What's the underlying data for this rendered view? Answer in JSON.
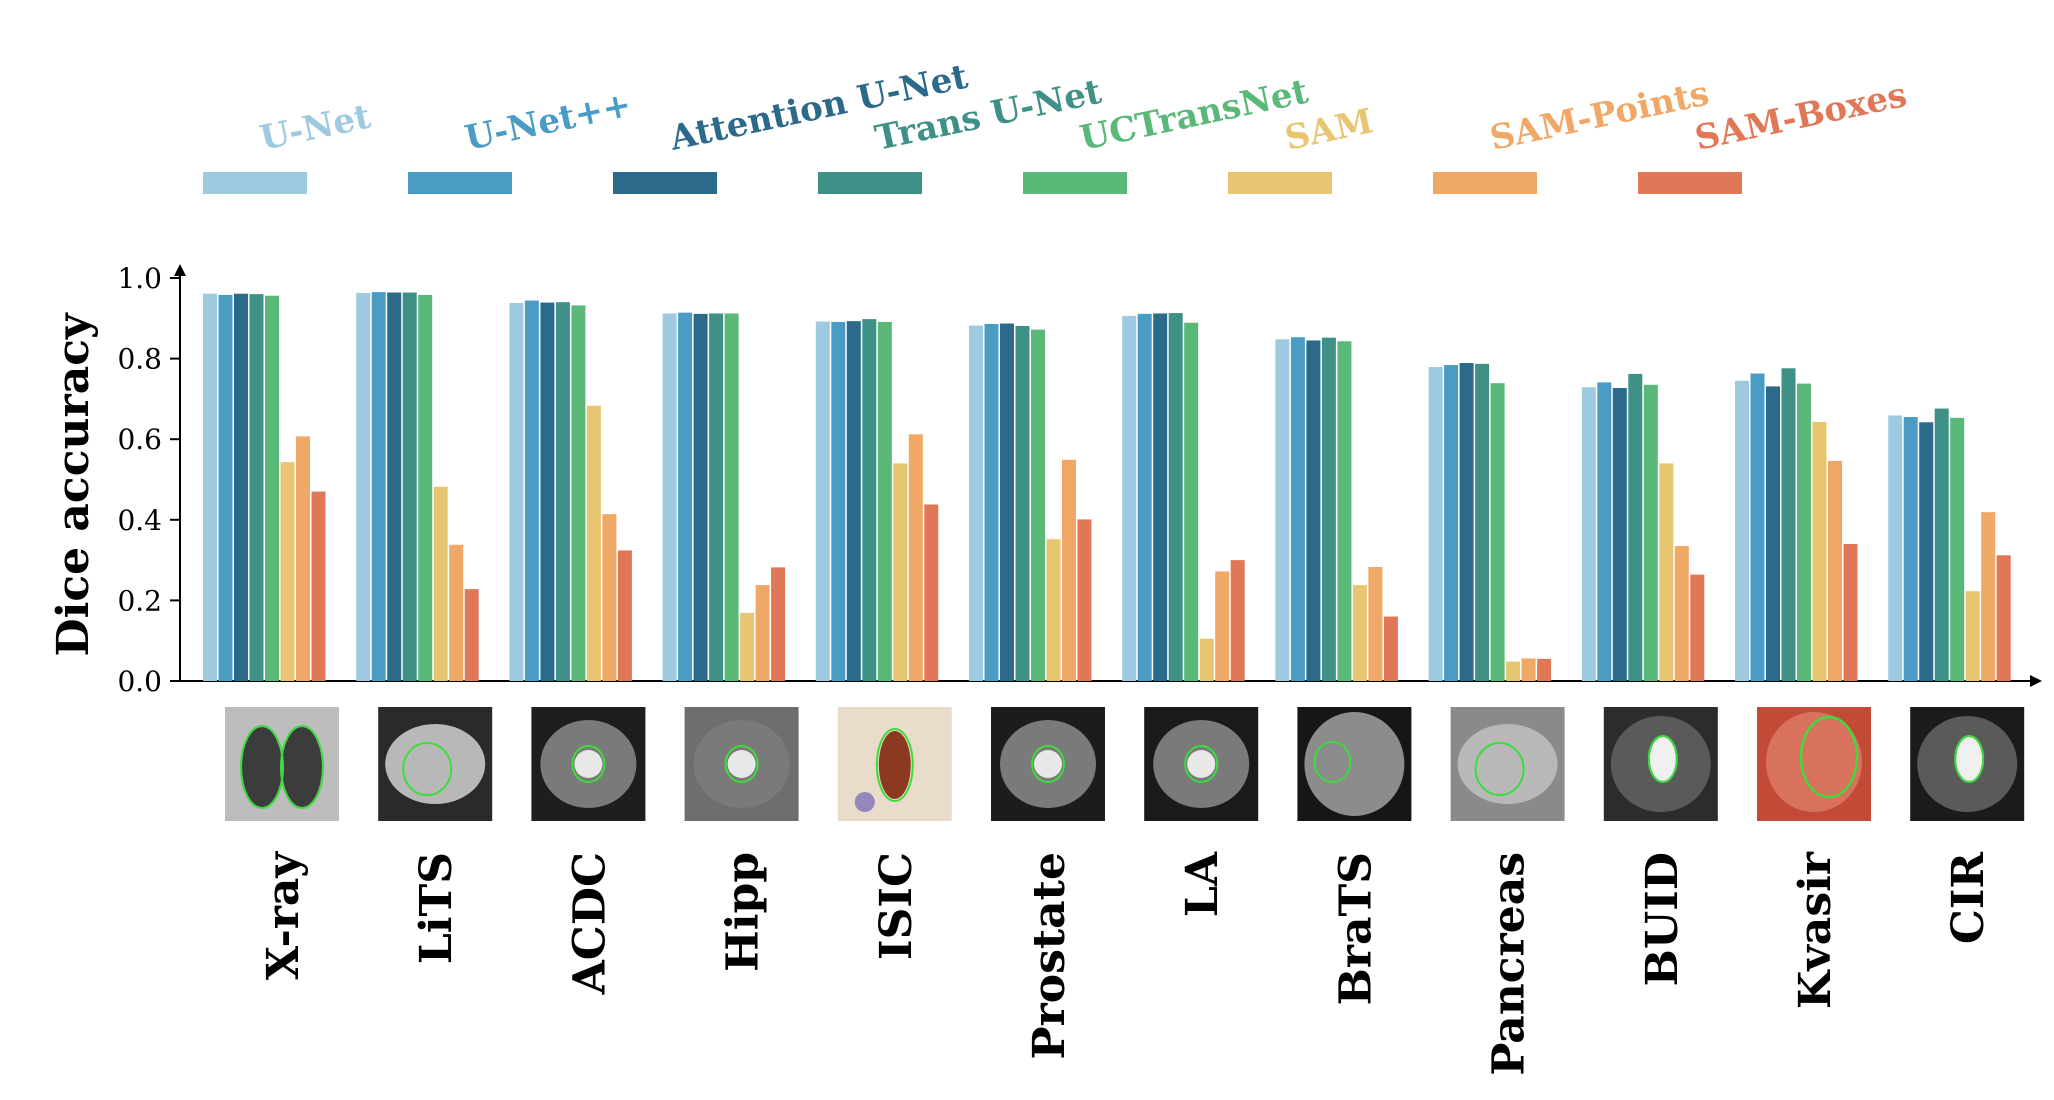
{
  "chart_data": {
    "type": "bar",
    "ylabel": "Dice accuracy",
    "ylim": [
      0.0,
      1.0
    ],
    "yticks": [
      "0.0",
      "0.2",
      "0.4",
      "0.6",
      "0.8",
      "1.0"
    ],
    "grid": false,
    "legend_position": "top",
    "categories": [
      "X-ray",
      "LiTS",
      "ACDC",
      "Hipp",
      "ISIC",
      "Prostate",
      "LA",
      "BraTS",
      "Pancreas",
      "BUID",
      "Kvasir",
      "CIR"
    ],
    "series": [
      {
        "name": "U-Net",
        "color": "#9ecae1",
        "values": [
          0.961,
          0.963,
          0.938,
          0.912,
          0.892,
          0.882,
          0.906,
          0.848,
          0.779,
          0.729,
          0.745,
          0.659
        ]
      },
      {
        "name": "U-Net++",
        "color": "#4a9cc4",
        "values": [
          0.958,
          0.965,
          0.944,
          0.914,
          0.891,
          0.886,
          0.911,
          0.853,
          0.784,
          0.741,
          0.763,
          0.655
        ]
      },
      {
        "name": "Attention U-Net",
        "color": "#2b6a8a",
        "values": [
          0.961,
          0.964,
          0.939,
          0.911,
          0.893,
          0.887,
          0.912,
          0.845,
          0.789,
          0.727,
          0.731,
          0.642
        ]
      },
      {
        "name": "Trans U-Net",
        "color": "#3f9087",
        "values": [
          0.96,
          0.964,
          0.94,
          0.912,
          0.898,
          0.881,
          0.913,
          0.852,
          0.787,
          0.762,
          0.776,
          0.676
        ]
      },
      {
        "name": "UCTransNet",
        "color": "#5ab878",
        "values": [
          0.956,
          0.958,
          0.932,
          0.912,
          0.891,
          0.872,
          0.889,
          0.843,
          0.739,
          0.735,
          0.738,
          0.653
        ]
      },
      {
        "name": "SAM",
        "color": "#e8c671",
        "values": [
          0.543,
          0.482,
          0.683,
          0.169,
          0.54,
          0.352,
          0.105,
          0.238,
          0.048,
          0.54,
          0.643,
          0.223
        ]
      },
      {
        "name": "SAM-Points",
        "color": "#f0a867",
        "values": [
          0.607,
          0.338,
          0.414,
          0.238,
          0.612,
          0.549,
          0.272,
          0.283,
          0.056,
          0.335,
          0.546,
          0.419
        ]
      },
      {
        "name": "SAM-Boxes",
        "color": "#e07858",
        "values": [
          0.47,
          0.228,
          0.324,
          0.282,
          0.438,
          0.401,
          0.3,
          0.16,
          0.055,
          0.264,
          0.34,
          0.312
        ]
      }
    ],
    "thumbnails": [
      {
        "category": "X-ray",
        "bg": "#bdbdbd",
        "kind": "xray"
      },
      {
        "category": "LiTS",
        "bg": "#2a2a2a",
        "kind": "ct"
      },
      {
        "category": "ACDC",
        "bg": "#1e1e1e",
        "kind": "mri"
      },
      {
        "category": "Hipp",
        "bg": "#6e6e6e",
        "kind": "mri-crop"
      },
      {
        "category": "ISIC",
        "bg": "#e9dccb",
        "kind": "skin"
      },
      {
        "category": "Prostate",
        "bg": "#1c1c1c",
        "kind": "mri"
      },
      {
        "category": "LA",
        "bg": "#1a1a1a",
        "kind": "mri"
      },
      {
        "category": "BraTS",
        "bg": "#161616",
        "kind": "brain"
      },
      {
        "category": "Pancreas",
        "bg": "#8a8a8a",
        "kind": "ct"
      },
      {
        "category": "BUID",
        "bg": "#2c2c2c",
        "kind": "ultrasound"
      },
      {
        "category": "Kvasir",
        "bg": "#c44a38",
        "kind": "endoscopy"
      },
      {
        "category": "CIR",
        "bg": "#1b1b1b",
        "kind": "ultrasound"
      }
    ]
  }
}
